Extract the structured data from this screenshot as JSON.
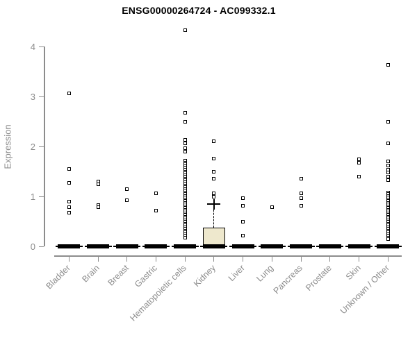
{
  "colors": {
    "axis": "#8c8c8c",
    "tick_text": "#8c8c8c",
    "title_text": "#000000",
    "point_border": "#000000",
    "box_fill": "#eee8cd",
    "median_bar": "#000000",
    "background": "#ffffff"
  },
  "chart_data": {
    "type": "boxplot-scatter",
    "title": "ENSG00000264724 - AC099332.1",
    "xlabel": "",
    "ylabel": "Expression",
    "ylim": [
      0,
      4.4
    ],
    "y_ticks": [
      0,
      1,
      2,
      3,
      4
    ],
    "grid": false,
    "marker": "open-square",
    "legend": "none",
    "categories": [
      "Bladder",
      "Brain",
      "Breast",
      "Gastric",
      "Hematopoietic cells",
      "Kidney",
      "Liver",
      "Lung",
      "Pancreas",
      "Prostate",
      "Skin",
      "Unknown / Other"
    ],
    "series": [
      {
        "category": "Bladder",
        "baseline_box": {
          "median": 0
        },
        "points": [
          3.06,
          1.55,
          1.27,
          0.9,
          0.79,
          0.67
        ]
      },
      {
        "category": "Brain",
        "baseline_box": {
          "median": 0
        },
        "points": [
          1.3,
          1.25,
          0.82,
          0.79
        ]
      },
      {
        "category": "Breast",
        "baseline_box": {
          "median": 0
        },
        "points": [
          1.15,
          0.93
        ]
      },
      {
        "category": "Gastric",
        "baseline_box": {
          "median": 0
        },
        "points": [
          1.06,
          0.71
        ]
      },
      {
        "category": "Hematopoietic cells",
        "baseline_box": {
          "median": 0
        },
        "points": [
          4.33,
          2.68,
          2.49,
          2.13,
          2.06,
          1.97,
          1.9,
          1.71,
          1.68,
          1.64,
          1.61,
          1.57,
          1.54,
          1.5,
          1.47,
          1.43,
          1.4,
          1.36,
          1.33,
          1.29,
          1.26,
          1.22,
          1.19,
          1.15,
          1.12,
          1.08,
          1.05,
          1.01,
          0.98,
          0.94,
          0.91,
          0.87,
          0.84,
          0.8,
          0.77,
          0.73,
          0.7,
          0.66,
          0.63,
          0.59,
          0.56,
          0.52,
          0.49,
          0.45,
          0.42,
          0.38,
          0.35,
          0.31,
          0.28,
          0.24,
          0.21,
          0.18
        ]
      },
      {
        "category": "Kidney",
        "baseline_box": {
          "median": 0
        },
        "box": {
          "q1": 0.03,
          "median": 0,
          "q3": 0.37,
          "whisker_high": 0.85,
          "mean": 0.87
        },
        "points": [
          2.11,
          1.76,
          1.5,
          1.35,
          1.06,
          1.0
        ]
      },
      {
        "category": "Liver",
        "baseline_box": {
          "median": 0
        },
        "points": [
          0.97,
          0.81,
          0.49,
          0.21
        ]
      },
      {
        "category": "Lung",
        "baseline_box": {
          "median": 0
        },
        "points": [
          0.78
        ]
      },
      {
        "category": "Pancreas",
        "baseline_box": {
          "median": 0
        },
        "points": [
          1.35,
          1.06,
          0.97,
          0.81
        ]
      },
      {
        "category": "Prostate",
        "baseline_box": {
          "median": 0
        },
        "points": []
      },
      {
        "category": "Skin",
        "baseline_box": {
          "median": 0
        },
        "points": [
          1.74,
          1.67,
          1.4
        ]
      },
      {
        "category": "Unknown / Other",
        "baseline_box": {
          "median": 0
        },
        "points": [
          3.63,
          2.49,
          2.06,
          1.7,
          1.62,
          1.53,
          1.48,
          1.4,
          1.32,
          1.08,
          1.05,
          1.01,
          0.98,
          0.94,
          0.91,
          0.87,
          0.84,
          0.8,
          0.77,
          0.73,
          0.7,
          0.66,
          0.63,
          0.59,
          0.56,
          0.52,
          0.49,
          0.45,
          0.42,
          0.38,
          0.35,
          0.31,
          0.28,
          0.24,
          0.21,
          0.17,
          0.14
        ]
      }
    ]
  }
}
